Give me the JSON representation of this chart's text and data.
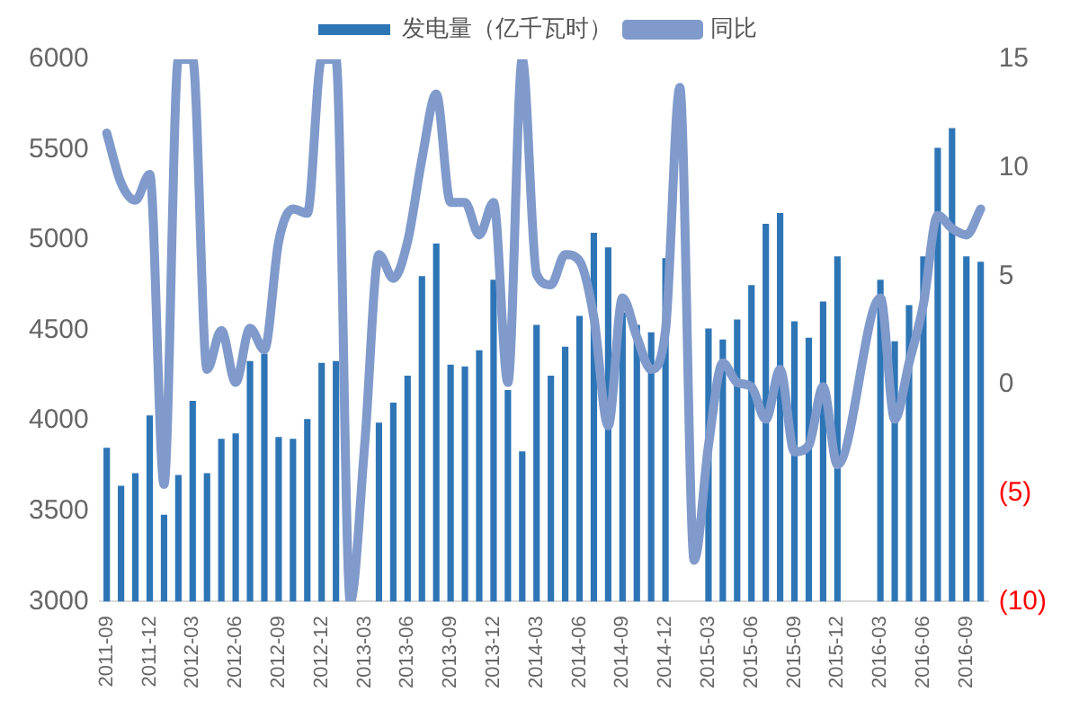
{
  "chart_data": {
    "type": "bar",
    "categories": [
      "2011-09",
      null,
      null,
      "2011-12",
      null,
      null,
      "2012-03",
      null,
      null,
      "2012-06",
      null,
      null,
      "2012-09",
      null,
      null,
      "2012-12",
      null,
      null,
      "2013-03",
      null,
      null,
      "2013-06",
      null,
      null,
      "2013-09",
      null,
      null,
      "2013-12",
      null,
      null,
      "2014-03",
      null,
      null,
      "2014-06",
      null,
      null,
      "2014-09",
      null,
      null,
      "2014-12",
      null,
      null,
      "2015-03",
      null,
      null,
      "2015-06",
      null,
      null,
      "2015-09",
      null,
      null,
      "2015-12",
      null,
      null,
      "2016-03",
      null,
      null,
      "2016-06",
      null,
      null,
      "2016-09",
      null
    ],
    "series": [
      {
        "name": "发电量（亿千瓦时）",
        "color": "#2e75b6",
        "values": [
          3850,
          3640,
          3710,
          4030,
          3480,
          3700,
          4110,
          3710,
          3900,
          3930,
          4330,
          4370,
          3910,
          3900,
          4010,
          4320,
          4330,
          null,
          null,
          3990,
          4100,
          4250,
          4800,
          4980,
          4310,
          4300,
          4390,
          4780,
          4170,
          3830,
          4530,
          4250,
          4410,
          4580,
          5040,
          4960,
          4600,
          4530,
          4490,
          4900,
          null,
          null,
          4510,
          4450,
          4560,
          4750,
          5090,
          5150,
          4550,
          4460,
          4660,
          4910,
          null,
          null,
          4780,
          4440,
          4640,
          4910,
          5510,
          5620,
          4910,
          4880
        ]
      },
      {
        "name": "同比",
        "type": "line",
        "axis": "y2",
        "color": "#7f9acb",
        "values": [
          11.6,
          9.3,
          8.5,
          9.7,
          -4.6,
          15,
          15,
          0.7,
          2.5,
          0.1,
          2.6,
          1.6,
          6.6,
          8.1,
          7.9,
          15,
          15,
          -10,
          -2.8,
          6.0,
          4.9,
          6.6,
          10.4,
          13.4,
          8.4,
          8.4,
          6.9,
          8.4,
          0.1,
          15,
          5.1,
          4.6,
          6.0,
          5.7,
          3.1,
          -1.9,
          4.0,
          2.2,
          0.7,
          2.5,
          13.7,
          -8.1,
          -2.8,
          1.0,
          0.1,
          -0.1,
          -1.6,
          0.7,
          -3.1,
          -2.8,
          -0.1,
          -3.7,
          null,
          null,
          4.0,
          -1.6,
          1.0,
          3.7,
          7.8,
          7.2,
          6.9,
          8.1
        ]
      }
    ],
    "ylim": [
      3000,
      6000
    ],
    "yticks": [
      3000,
      3500,
      4000,
      4500,
      5000,
      5500,
      6000
    ],
    "y2lim": [
      -10,
      15
    ],
    "y2ticks": [
      {
        "value": -10,
        "label": "(10)"
      },
      {
        "value": -5,
        "label": "(5)"
      },
      0,
      5,
      10,
      15
    ],
    "grid": false,
    "legend": "top"
  }
}
